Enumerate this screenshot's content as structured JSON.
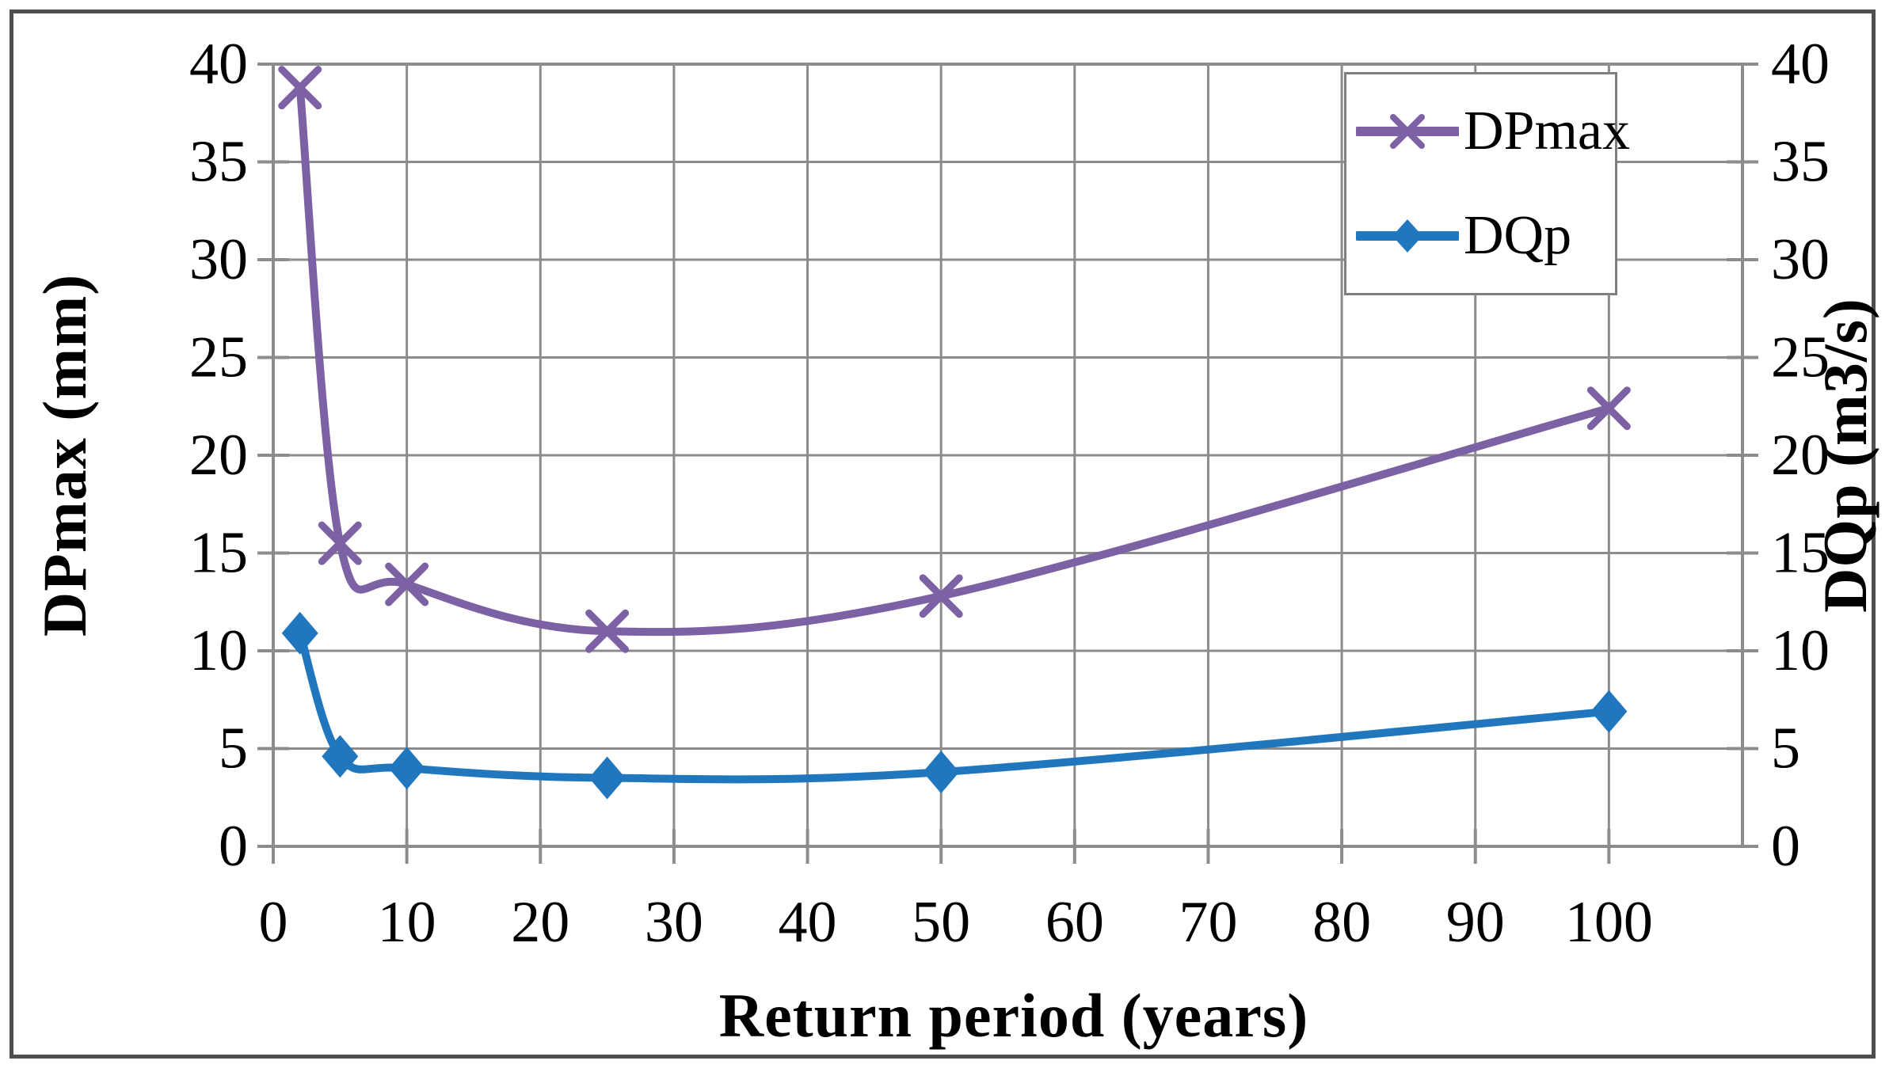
{
  "figure": {
    "background_color": "#ffffff",
    "border_color": "#4f4f4f"
  },
  "axes": {
    "x_title": "Return period (years)",
    "left_title": "DPmax (mm)",
    "right_title": "DQp (m3/s)"
  },
  "legend": {
    "items": [
      {
        "label": "DPmax"
      },
      {
        "label": "DQp"
      }
    ]
  },
  "chart_data": {
    "type": "line",
    "x": [
      2,
      5,
      10,
      25,
      50,
      100
    ],
    "series": [
      {
        "name": "DPmax",
        "axis": "left",
        "color": "#7C61A5",
        "marker": "x",
        "values": [
          38.8,
          15.5,
          13.4,
          11.0,
          12.8,
          22.4
        ]
      },
      {
        "name": "DQp",
        "axis": "right",
        "color": "#2177BD",
        "marker": "diamond",
        "values": [
          10.9,
          4.6,
          4.0,
          3.5,
          3.8,
          6.9
        ]
      }
    ],
    "title": "",
    "xlabel": "Return period (years)",
    "ylabel_left": "DPmax (mm)",
    "ylabel_right": "DQp (m3/s)",
    "xlim": [
      0,
      110
    ],
    "ylim": [
      0,
      40
    ],
    "x_ticks": [
      0,
      10,
      20,
      30,
      40,
      50,
      60,
      70,
      80,
      90,
      100
    ],
    "y_ticks": [
      0,
      5,
      10,
      15,
      20,
      25,
      30,
      35,
      40
    ],
    "grid": true,
    "grid_color": "#8c8c8c",
    "smooth": true,
    "legend_position": "top-right"
  }
}
